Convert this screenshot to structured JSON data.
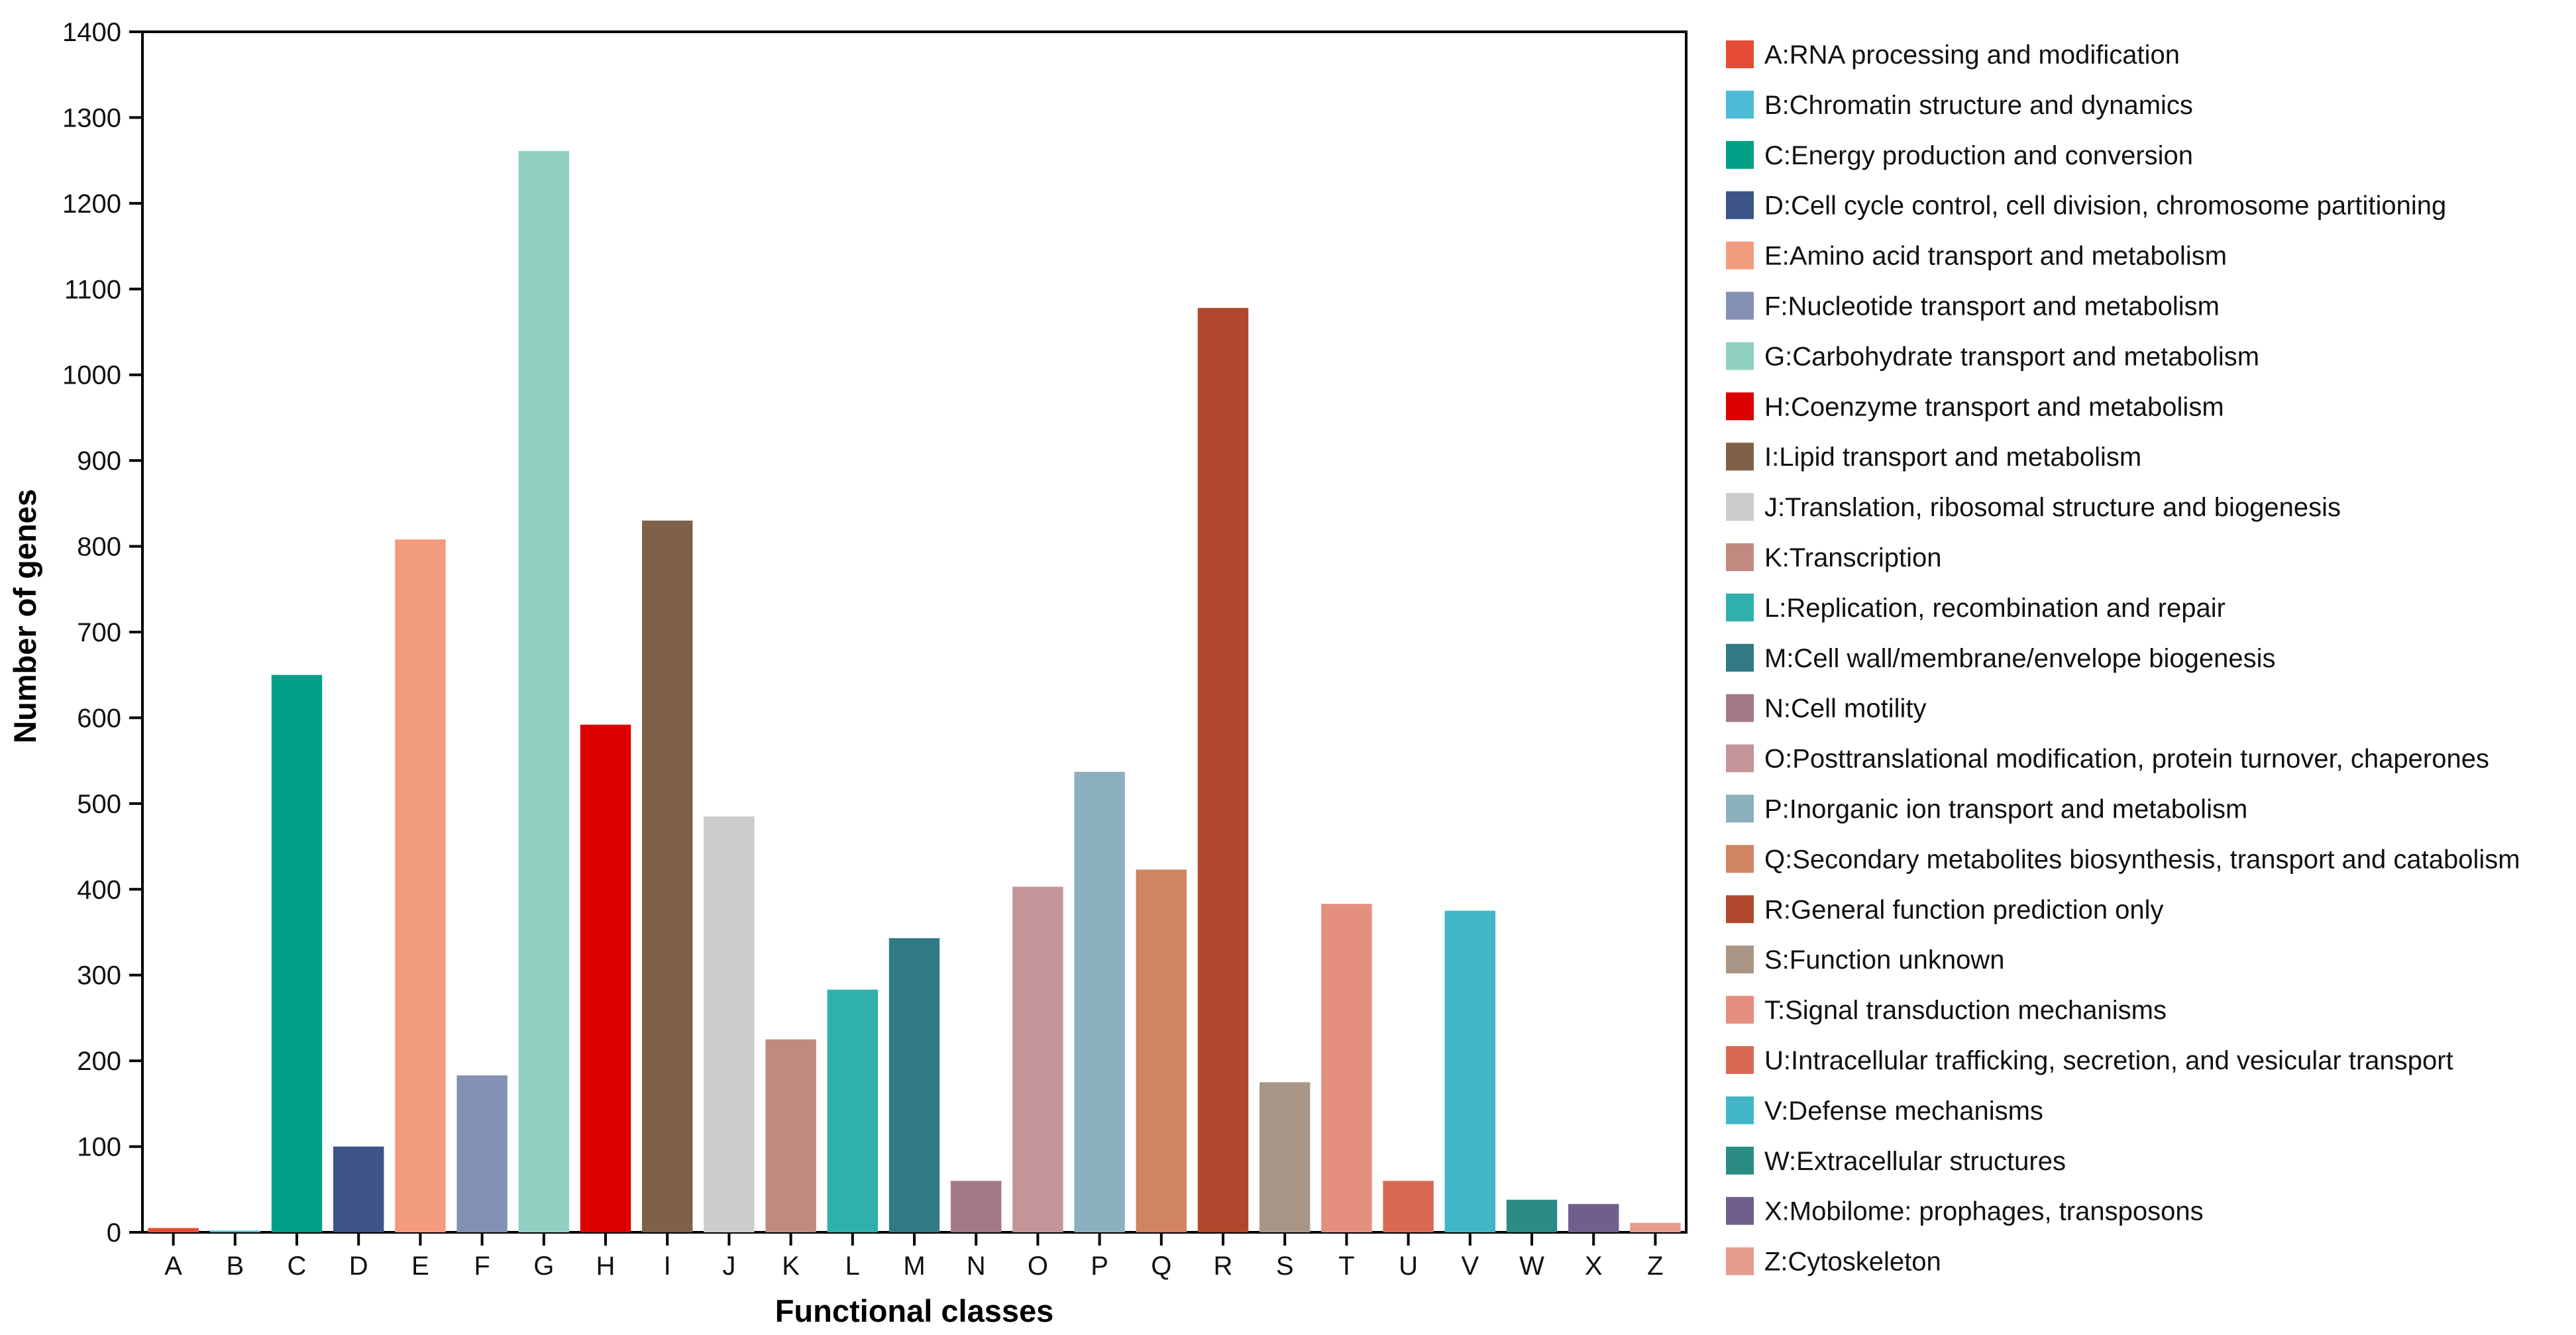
{
  "chart_data": {
    "type": "bar",
    "title": "",
    "xlabel": "Functional classes",
    "ylabel": "Number of genes",
    "ylim": [
      0,
      1400
    ],
    "yticks": [
      0,
      100,
      200,
      300,
      400,
      500,
      600,
      700,
      800,
      900,
      1000,
      1100,
      1200,
      1300,
      1400
    ],
    "grid": false,
    "legend_position": "right",
    "categories": [
      "A",
      "B",
      "C",
      "D",
      "E",
      "F",
      "G",
      "H",
      "I",
      "J",
      "K",
      "L",
      "M",
      "N",
      "O",
      "P",
      "Q",
      "R",
      "S",
      "T",
      "U",
      "V",
      "W",
      "X",
      "Z"
    ],
    "values": [
      5,
      2,
      650,
      100,
      808,
      183,
      1261,
      592,
      830,
      485,
      225,
      283,
      343,
      60,
      403,
      537,
      423,
      1078,
      175,
      383,
      60,
      375,
      38,
      33,
      11
    ],
    "colors": [
      "#e64b35",
      "#4dbbd5",
      "#00a087",
      "#3c5488",
      "#f39b7f",
      "#8491b4",
      "#91d1c2",
      "#dc0000",
      "#7e6148",
      "#cccccc",
      "#c08a80",
      "#2fb0ad",
      "#327a86",
      "#a3798a",
      "#c39598",
      "#8db0be",
      "#d08461",
      "#b0472c",
      "#a89585",
      "#e48f80",
      "#d86a55",
      "#42b6c6",
      "#2a8c83",
      "#6f5f8c",
      "#e49c8e"
    ],
    "legend": [
      "A:RNA processing and modification",
      "B:Chromatin structure and dynamics",
      "C:Energy production and conversion",
      "D:Cell cycle control, cell division, chromosome partitioning",
      "E:Amino acid transport and metabolism",
      "F:Nucleotide transport and metabolism",
      "G:Carbohydrate transport and metabolism",
      "H:Coenzyme transport and metabolism",
      "I:Lipid transport and metabolism",
      "J:Translation, ribosomal structure and biogenesis",
      "K:Transcription",
      "L:Replication, recombination and repair",
      "M:Cell wall/membrane/envelope biogenesis",
      "N:Cell motility",
      "O:Posttranslational modification, protein turnover, chaperones",
      "P:Inorganic ion transport and metabolism",
      "Q:Secondary metabolites biosynthesis, transport and catabolism",
      "R:General function prediction only",
      "S:Function unknown",
      "T:Signal transduction mechanisms",
      "U:Intracellular trafficking, secretion, and vesicular transport",
      "V:Defense mechanisms",
      "W:Extracellular structures",
      "X:Mobilome: prophages, transposons",
      "Z:Cytoskeleton"
    ]
  }
}
